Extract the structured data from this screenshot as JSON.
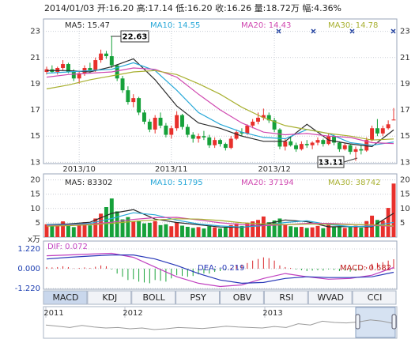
{
  "header": "2014/01/03 开:16.20 高:17.14 低:16.20 收:16.26 量:18.72万 幅:4.36%",
  "chart_data": [
    {
      "type": "candlestick",
      "categories": [
        null,
        null,
        null,
        null,
        null,
        null,
        "2013/10",
        null,
        null,
        null,
        null,
        null,
        null,
        null,
        null,
        null,
        null,
        null,
        null,
        null,
        null,
        null,
        null,
        "2013/11",
        null,
        null,
        null,
        null,
        null,
        null,
        null,
        null,
        null,
        null,
        null,
        null,
        null,
        null,
        null,
        null,
        null,
        null,
        "2013/12",
        null,
        null,
        null,
        null,
        null,
        null,
        null,
        null,
        null,
        null,
        null,
        null,
        null,
        null,
        null,
        null,
        null,
        null,
        null,
        null,
        null,
        null
      ],
      "open": [
        19.9,
        20.1,
        19.9,
        20.2,
        20.5,
        19.9,
        19.4,
        19.8,
        20.2,
        20.0,
        20.8,
        21.3,
        21.1,
        20.4,
        19.4,
        18.5,
        17.6,
        17.9,
        16.8,
        16.1,
        15.5,
        16.4,
        15.8,
        15.1,
        15.6,
        16.6,
        15.7,
        15.1,
        14.8,
        15.0,
        14.9,
        14.3,
        14.7,
        14.4,
        14.1,
        14.8,
        15.3,
        15.2,
        15.8,
        16.1,
        16.4,
        16.6,
        16.2,
        15.5,
        14.2,
        14.6,
        14.3,
        14.0,
        14.4,
        14.3,
        14.5,
        14.7,
        14.4,
        15.0,
        14.5,
        14.0,
        14.3,
        13.8,
        14.0,
        13.9,
        14.7,
        15.6,
        15.2,
        15.6,
        16.2
      ],
      "high": [
        20.3,
        20.4,
        20.3,
        20.8,
        20.6,
        20.1,
        20.0,
        20.4,
        20.6,
        21.0,
        21.6,
        21.5,
        22.63,
        20.5,
        19.6,
        18.8,
        18.2,
        18.0,
        17.0,
        16.3,
        16.6,
        16.8,
        16.0,
        15.8,
        16.9,
        16.7,
        15.9,
        15.3,
        15.2,
        15.4,
        15.1,
        14.9,
        14.8,
        14.5,
        15.0,
        15.5,
        15.6,
        15.9,
        16.3,
        16.8,
        17.1,
        16.8,
        16.4,
        15.6,
        14.8,
        14.9,
        14.5,
        14.6,
        14.7,
        14.6,
        14.9,
        14.8,
        15.2,
        15.1,
        14.6,
        14.5,
        14.4,
        14.2,
        14.3,
        14.9,
        15.8,
        16.3,
        15.8,
        16.2,
        17.14
      ],
      "low": [
        19.7,
        19.8,
        19.7,
        20.0,
        19.8,
        19.2,
        19.0,
        19.6,
        19.8,
        19.9,
        20.6,
        20.9,
        20.2,
        19.2,
        18.3,
        17.4,
        17.2,
        16.6,
        15.9,
        15.3,
        15.2,
        15.6,
        14.9,
        14.8,
        15.4,
        15.5,
        14.9,
        14.5,
        14.5,
        14.7,
        14.1,
        14.1,
        14.2,
        13.9,
        14.0,
        14.7,
        15.0,
        15.1,
        15.6,
        15.9,
        16.2,
        16.0,
        15.3,
        14.0,
        13.9,
        14.2,
        13.8,
        13.9,
        14.1,
        14.0,
        14.3,
        14.2,
        14.3,
        14.3,
        13.8,
        13.9,
        13.6,
        13.11,
        13.6,
        13.8,
        14.6,
        15.0,
        15.0,
        15.5,
        16.2
      ],
      "close": [
        20.1,
        19.9,
        20.2,
        20.5,
        19.9,
        19.4,
        19.8,
        20.2,
        20.0,
        20.8,
        21.3,
        21.1,
        20.4,
        19.4,
        18.5,
        17.6,
        17.9,
        16.8,
        16.1,
        15.5,
        16.4,
        15.8,
        15.1,
        15.6,
        16.6,
        15.7,
        15.1,
        14.8,
        15.0,
        14.9,
        14.3,
        14.7,
        14.4,
        14.1,
        14.8,
        15.3,
        15.2,
        15.8,
        16.1,
        16.4,
        16.6,
        16.2,
        15.5,
        14.2,
        14.6,
        14.3,
        14.0,
        14.4,
        14.3,
        14.5,
        14.7,
        14.4,
        15.0,
        14.5,
        14.0,
        14.3,
        13.8,
        14.0,
        13.9,
        14.7,
        15.6,
        15.2,
        15.6,
        15.9,
        16.26
      ],
      "up_color": "#e8302c",
      "down_color": "#16a13a",
      "ylim": [
        12.9,
        23.7
      ],
      "yticks": [
        13,
        15,
        17,
        19,
        21,
        23
      ],
      "grid": true,
      "annotations": [
        "22.63",
        "13.11"
      ],
      "line_x": [
        0,
        4,
        8,
        12,
        16,
        20,
        24,
        28,
        32,
        36,
        40,
        44,
        48,
        52,
        56,
        60,
        64
      ],
      "lines": [
        {
          "name": "MA5: 15.47",
          "color": "#2a2a2a",
          "values": [
            20.0,
            20.0,
            19.9,
            20.3,
            20.9,
            19.3,
            17.3,
            16.0,
            15.6,
            15.0,
            14.6,
            14.6,
            15.9,
            14.7,
            14.4,
            14.2,
            15.47
          ]
        },
        {
          "name": "MA10: 14.55",
          "color": "#28a8d8",
          "values": [
            19.8,
            19.9,
            20.0,
            20.1,
            20.6,
            20.0,
            18.5,
            16.8,
            15.9,
            15.3,
            14.9,
            14.8,
            15.5,
            15.2,
            14.5,
            14.3,
            14.55
          ]
        },
        {
          "name": "MA20: 14.43",
          "color": "#d048b0",
          "values": [
            19.5,
            19.7,
            19.8,
            19.9,
            20.2,
            20.1,
            19.5,
            18.2,
            17.0,
            16.0,
            15.3,
            15.1,
            15.2,
            15.0,
            14.9,
            14.5,
            14.43
          ]
        },
        {
          "name": "MA30: 14.78",
          "color": "#a8b030",
          "values": [
            18.6,
            18.9,
            19.3,
            19.6,
            19.9,
            20.0,
            19.7,
            19.0,
            18.2,
            17.2,
            16.4,
            15.8,
            15.5,
            15.2,
            15.0,
            14.7,
            14.78
          ]
        }
      ]
    },
    {
      "type": "volume",
      "values": [
        4.5,
        3.8,
        4.2,
        5.5,
        4.0,
        3.5,
        4.8,
        5.2,
        4.1,
        6.5,
        8.2,
        10.5,
        13.5,
        9.0,
        6.2,
        7.0,
        5.5,
        5.8,
        4.8,
        5.0,
        5.6,
        4.2,
        4.5,
        3.8,
        5.2,
        4.0,
        3.6,
        3.2,
        3.5,
        3.0,
        3.8,
        3.4,
        3.0,
        3.3,
        4.2,
        4.8,
        3.9,
        5.0,
        5.5,
        6.0,
        7.2,
        5.2,
        5.8,
        6.5,
        4.5,
        3.8,
        3.5,
        3.6,
        3.2,
        3.4,
        3.9,
        3.1,
        4.4,
        3.6,
        3.8,
        3.2,
        3.5,
        4.0,
        3.3,
        5.6,
        7.5,
        6.0,
        5.8,
        10.2,
        18.72
      ],
      "ylim": [
        0,
        21
      ],
      "yticks": [
        5,
        10,
        15,
        20
      ],
      "unit_label": "x万",
      "line_x": [
        0,
        4,
        8,
        12,
        16,
        20,
        24,
        28,
        32,
        36,
        40,
        44,
        48,
        52,
        56,
        60,
        64
      ],
      "lines": [
        {
          "name": "MA5: 83302",
          "color": "#2a2a2a",
          "values": [
            4.4,
            4.6,
            5.2,
            8.3,
            9.6,
            6.3,
            5.1,
            4.3,
            3.5,
            3.4,
            4.4,
            6.0,
            5.4,
            3.6,
            3.7,
            3.6,
            8.33
          ]
        },
        {
          "name": "MA10: 51795",
          "color": "#28a8d8",
          "values": [
            4.3,
            4.4,
            4.8,
            6.5,
            8.5,
            7.8,
            5.9,
            4.6,
            3.9,
            3.5,
            4.0,
            5.1,
            5.7,
            4.4,
            3.7,
            3.8,
            5.18
          ]
        },
        {
          "name": "MA20: 37194",
          "color": "#d048b0",
          "values": [
            4.0,
            4.2,
            4.5,
            5.2,
            6.2,
            6.8,
            6.9,
            6.0,
            5.0,
            4.4,
            4.0,
            4.3,
            4.8,
            4.8,
            4.5,
            4.1,
            3.72
          ]
        },
        {
          "name": "MA30: 38742",
          "color": "#a8b030",
          "values": [
            3.8,
            4.0,
            4.3,
            4.8,
            5.5,
            6.0,
            6.4,
            6.3,
            5.8,
            5.0,
            4.6,
            4.4,
            4.5,
            4.5,
            4.4,
            4.3,
            3.87
          ]
        }
      ]
    },
    {
      "type": "macd",
      "values": [
        0.1,
        0.08,
        0.1,
        0.15,
        0.1,
        0.02,
        0.05,
        0.08,
        0.05,
        0.12,
        0.2,
        0.15,
        -0.05,
        -0.3,
        -0.5,
        -0.7,
        -0.65,
        -0.8,
        -0.85,
        -0.9,
        -0.7,
        -0.75,
        -0.8,
        -0.6,
        -0.4,
        -0.45,
        -0.5,
        -0.45,
        -0.35,
        -0.3,
        -0.3,
        -0.2,
        -0.15,
        -0.1,
        0.05,
        0.2,
        0.25,
        0.35,
        0.5,
        0.6,
        0.7,
        0.65,
        0.5,
        0.2,
        0.1,
        0.05,
        -0.05,
        -0.1,
        -0.15,
        -0.12,
        -0.1,
        -0.12,
        -0.05,
        -0.08,
        -0.15,
        -0.12,
        -0.18,
        -0.15,
        -0.1,
        0.1,
        0.3,
        0.35,
        0.4,
        0.5,
        0.582
      ],
      "pos_color": "#d8242a",
      "neg_color": "#1aa33a",
      "ylim": [
        -1.27,
        1.56
      ],
      "yticks": [
        {
          "value": 1.22,
          "label": "1.220"
        },
        {
          "value": 0,
          "label": "0.000"
        },
        {
          "value": -1.22,
          "label": "-1.220"
        }
      ],
      "line_x": [
        0,
        4,
        8,
        12,
        16,
        20,
        24,
        28,
        32,
        36,
        40,
        44,
        48,
        52,
        56,
        60,
        64
      ],
      "lines": [
        {
          "name": "DIF: 0.072",
          "color": "#c040c0",
          "values": [
            0.8,
            0.85,
            0.9,
            0.95,
            0.7,
            0.1,
            -0.5,
            -0.9,
            -1.1,
            -1.0,
            -0.6,
            -0.3,
            -0.5,
            -0.65,
            -0.6,
            -0.4,
            0.072
          ]
        },
        {
          "name": "DEA: -0.219",
          "color": "#2838b8",
          "values": [
            0.6,
            0.7,
            0.78,
            0.85,
            0.85,
            0.6,
            0.2,
            -0.3,
            -0.7,
            -0.9,
            -0.85,
            -0.6,
            -0.5,
            -0.55,
            -0.55,
            -0.5,
            -0.219
          ]
        }
      ],
      "legend": "MACD: 0.582"
    }
  ],
  "tabs": [
    "MACD",
    "KDJ",
    "BOLL",
    "PSY",
    "OBV",
    "RSI",
    "WVAD",
    "CCI"
  ],
  "navigator": {
    "labels": [
      "2011",
      "2012",
      "2013"
    ],
    "ylim": [
      0,
      100
    ],
    "values": [
      40,
      35,
      30,
      38,
      32,
      28,
      30,
      25,
      28,
      22,
      25,
      30,
      28,
      26,
      30,
      35,
      32,
      30,
      28,
      34,
      30,
      45,
      40,
      55,
      50,
      48,
      52,
      60,
      55,
      45
    ]
  }
}
